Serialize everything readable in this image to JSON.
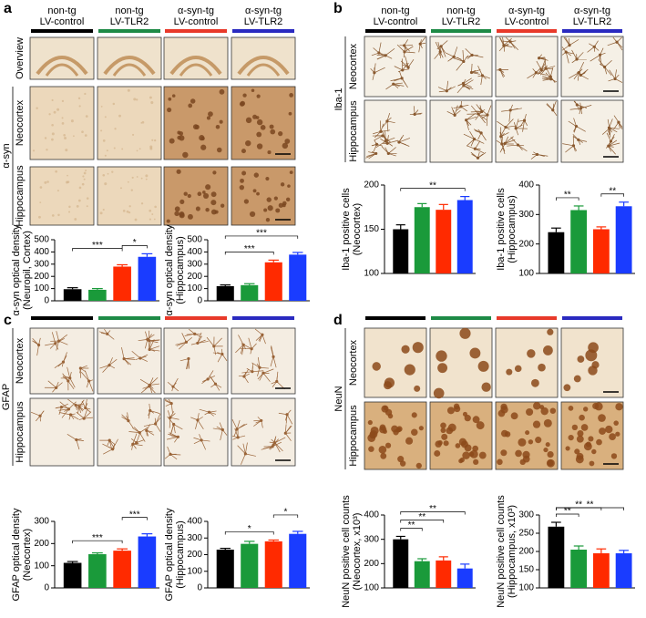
{
  "panels": [
    {
      "letter": "a",
      "stain": "α-syn",
      "rows": [
        "Overview",
        "Neocortex",
        "Hippocampus"
      ],
      "groups": [
        {
          "label": [
            "non-tg",
            "LV-control"
          ],
          "color": "#000000"
        },
        {
          "label": [
            "non-tg",
            "LV-TLR2"
          ],
          "color": "#1e8a46"
        },
        {
          "label": [
            "α-syn-tg",
            "LV-control"
          ],
          "color": "#e8392a"
        },
        {
          "label": [
            "α-syn-tg",
            "LV-TLR2"
          ],
          "color": "#2a2ac0"
        }
      ]
    },
    {
      "letter": "b",
      "stain": "Iba-1",
      "rows": [
        "Neocortex",
        "Hippocampus"
      ],
      "groups": [
        {
          "label": [
            "non-tg",
            "LV-control"
          ],
          "color": "#000000"
        },
        {
          "label": [
            "non-tg",
            "LV-TLR2"
          ],
          "color": "#1e8a46"
        },
        {
          "label": [
            "α-syn-tg",
            "LV-control"
          ],
          "color": "#e8392a"
        },
        {
          "label": [
            "α-syn-tg",
            "LV-TLR2"
          ],
          "color": "#2a2ac0"
        }
      ]
    },
    {
      "letter": "c",
      "stain": "GFAP",
      "rows": [
        "Neocortex",
        "Hippocampus"
      ],
      "groups": [
        {
          "color": "#000000"
        },
        {
          "color": "#1e8a46"
        },
        {
          "color": "#e8392a"
        },
        {
          "color": "#2a2ac0"
        }
      ]
    },
    {
      "letter": "d",
      "stain": "NeuN",
      "rows": [
        "Neocortex",
        "Hippocampus"
      ],
      "groups": [
        {
          "color": "#000000"
        },
        {
          "color": "#1e8a46"
        },
        {
          "color": "#e8392a"
        },
        {
          "color": "#2a2ac0"
        }
      ]
    }
  ],
  "chart_data": [
    {
      "type": "bar",
      "ylabel": [
        "α-syn optical density",
        "(Neuropil, Cortex)"
      ],
      "categories": [
        null,
        null,
        null,
        null
      ],
      "values": [
        95,
        90,
        280,
        360
      ],
      "errors": [
        12,
        10,
        15,
        25
      ],
      "colors": [
        "#000000",
        "#1a9a3a",
        "#ff2a00",
        "#1a3cff"
      ],
      "ylim": [
        0,
        500
      ],
      "yticks": [
        0,
        100,
        200,
        300,
        400,
        500
      ],
      "annotations": [
        {
          "text": "*",
          "from": 2,
          "to": 3
        },
        {
          "text": "***",
          "from": 0,
          "to": 2
        }
      ]
    },
    {
      "type": "bar",
      "ylabel": [
        "α-syn optical density",
        "(Hippocampus)"
      ],
      "categories": [
        null,
        null,
        null,
        null
      ],
      "values": [
        120,
        128,
        315,
        378
      ],
      "errors": [
        10,
        12,
        18,
        18
      ],
      "colors": [
        "#000000",
        "#1a9a3a",
        "#ff2a00",
        "#1a3cff"
      ],
      "ylim": [
        0,
        500
      ],
      "yticks": [
        0,
        100,
        200,
        300,
        400,
        500
      ],
      "annotations": [
        {
          "text": "***",
          "from": 0,
          "to": 2
        },
        {
          "text": "***",
          "from": 0,
          "to": 3
        }
      ]
    },
    {
      "type": "bar",
      "ylabel": [
        "Iba-1 positive cells",
        "(Neocortex)"
      ],
      "categories": [
        null,
        null,
        null,
        null
      ],
      "values": [
        150,
        175,
        172,
        183
      ],
      "errors": [
        5,
        4,
        6,
        4
      ],
      "colors": [
        "#000000",
        "#1a9a3a",
        "#ff2a00",
        "#1a3cff"
      ],
      "ylim": [
        100,
        200
      ],
      "yticks": [
        100,
        150,
        200
      ],
      "annotations": [
        {
          "text": "**",
          "from": 0,
          "to": 3
        }
      ]
    },
    {
      "type": "bar",
      "ylabel": [
        "Iba-1 positive cells",
        "(Hippocampus)"
      ],
      "categories": [
        null,
        null,
        null,
        null
      ],
      "values": [
        240,
        315,
        250,
        328
      ],
      "errors": [
        14,
        14,
        8,
        14
      ],
      "colors": [
        "#000000",
        "#1a9a3a",
        "#ff2a00",
        "#1a3cff"
      ],
      "ylim": [
        100,
        400
      ],
      "yticks": [
        100,
        200,
        300,
        400
      ],
      "annotations": [
        {
          "text": "**",
          "from": 0,
          "to": 1
        },
        {
          "text": "**",
          "from": 2,
          "to": 3
        }
      ]
    },
    {
      "type": "bar",
      "ylabel": [
        "GFAP optical density",
        "(Neocortex)"
      ],
      "categories": [
        null,
        null,
        null,
        null
      ],
      "values": [
        113,
        152,
        168,
        232
      ],
      "errors": [
        6,
        6,
        8,
        12
      ],
      "colors": [
        "#000000",
        "#1a9a3a",
        "#ff2a00",
        "#1a3cff"
      ],
      "ylim": [
        0,
        300
      ],
      "yticks": [
        0,
        100,
        200,
        300
      ],
      "annotations": [
        {
          "text": "***",
          "from": 0,
          "to": 2
        },
        {
          "text": "***",
          "from": 2,
          "to": 3
        }
      ]
    },
    {
      "type": "bar",
      "ylabel": [
        "GFAP optical density",
        "(Hippocampus)"
      ],
      "categories": [
        null,
        null,
        null,
        null
      ],
      "values": [
        230,
        265,
        280,
        325
      ],
      "errors": [
        8,
        15,
        8,
        15
      ],
      "colors": [
        "#000000",
        "#1a9a3a",
        "#ff2a00",
        "#1a3cff"
      ],
      "ylim": [
        0,
        400
      ],
      "yticks": [
        0,
        100,
        200,
        300,
        400
      ],
      "annotations": [
        {
          "text": "*",
          "from": 0,
          "to": 2
        },
        {
          "text": "*",
          "from": 2,
          "to": 3
        }
      ]
    },
    {
      "type": "bar",
      "ylabel": [
        "NeuN positive cell counts",
        "(Neocortex, x10³)"
      ],
      "categories": [
        null,
        null,
        null,
        null
      ],
      "values": [
        300,
        210,
        213,
        180
      ],
      "errors": [
        12,
        10,
        15,
        18
      ],
      "colors": [
        "#000000",
        "#1a9a3a",
        "#ff2a00",
        "#1a3cff"
      ],
      "ylim": [
        100,
        400
      ],
      "yticks": [
        100,
        200,
        300,
        400
      ],
      "annotations": [
        {
          "text": "**",
          "from": 0,
          "to": 1
        },
        {
          "text": "**",
          "from": 0,
          "to": 2
        },
        {
          "text": "**",
          "from": 0,
          "to": 3
        }
      ]
    },
    {
      "type": "bar",
      "ylabel": [
        "NeuN positive cell counts",
        "(Hippocampus, x10³)"
      ],
      "categories": [
        null,
        null,
        null,
        null
      ],
      "values": [
        268,
        205,
        195,
        195
      ],
      "errors": [
        12,
        10,
        12,
        8
      ],
      "colors": [
        "#000000",
        "#1a9a3a",
        "#ff2a00",
        "#1a3cff"
      ],
      "ylim": [
        100,
        300
      ],
      "yticks": [
        100,
        150,
        200,
        250,
        300
      ],
      "annotations": [
        {
          "text": "**",
          "from": 0,
          "to": 1
        },
        {
          "text": "**",
          "from": 0,
          "to": 2
        },
        {
          "text": "**",
          "from": 0,
          "to": 3
        }
      ]
    }
  ]
}
